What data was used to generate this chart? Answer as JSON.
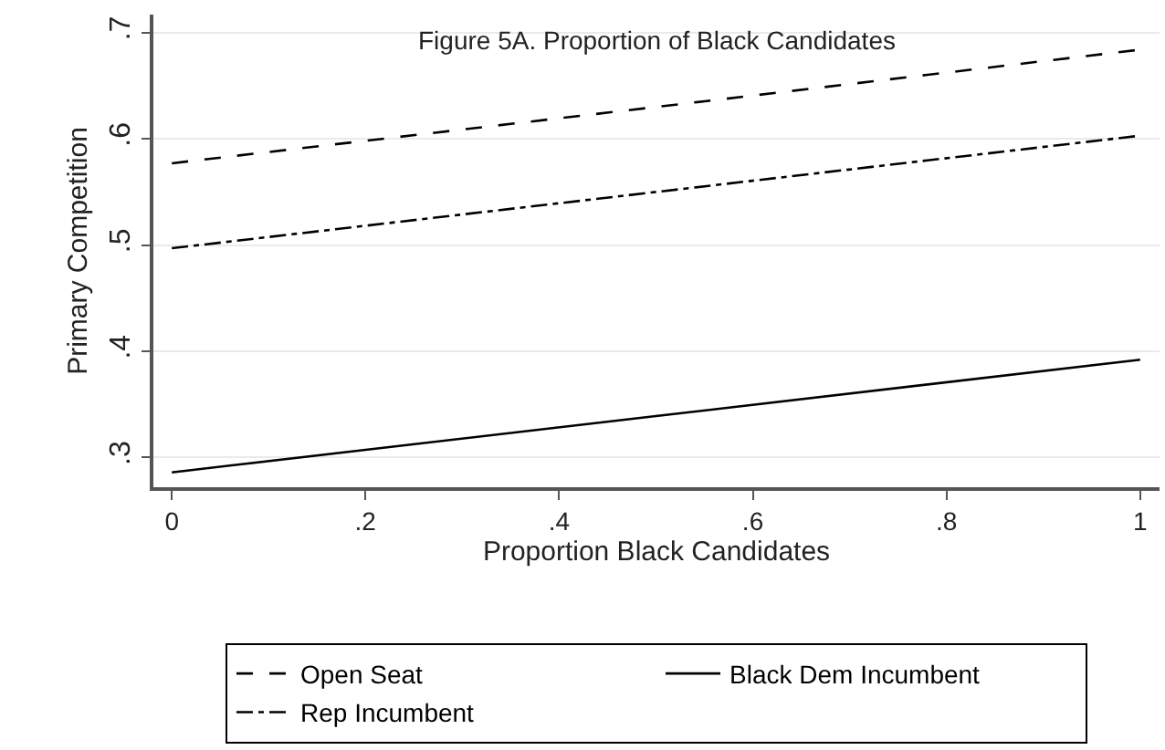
{
  "chart_data": {
    "type": "line",
    "title": "Figure 5A. Proportion of Black Candidates",
    "xlabel": "Proportion Black Candidates",
    "ylabel": "Primary Competition",
    "x": [
      0,
      0.5,
      1
    ],
    "series": [
      {
        "name": "Open Seat",
        "color": "#000000",
        "line_style": "dashed",
        "values": [
          0.577,
          0.63,
          0.684
        ]
      },
      {
        "name": "Black Dem Incumbent",
        "color": "#000000",
        "line_style": "solid",
        "values": [
          0.286,
          0.339,
          0.392
        ]
      },
      {
        "name": "Rep Incumbent",
        "color": "#000000",
        "line_style": "dashdot",
        "values": [
          0.497,
          0.55,
          0.603
        ]
      }
    ],
    "xlim": [
      -0.019,
      1.02
    ],
    "ylim": [
      0.272,
      0.717
    ],
    "xticks": [
      {
        "value": 0,
        "label": "0"
      },
      {
        "value": 0.2,
        "label": ".2"
      },
      {
        "value": 0.4,
        "label": ".4"
      },
      {
        "value": 0.6,
        "label": ".6"
      },
      {
        "value": 0.8,
        "label": ".8"
      },
      {
        "value": 1,
        "label": "1"
      }
    ],
    "yticks": [
      {
        "value": 0.3,
        "label": ".3"
      },
      {
        "value": 0.4,
        "label": ".4"
      },
      {
        "value": 0.5,
        "label": ".5"
      },
      {
        "value": 0.6,
        "label": ".6"
      },
      {
        "value": 0.7,
        "label": ".7"
      }
    ],
    "grid": "y",
    "legend": "bottom",
    "marker": "none"
  }
}
